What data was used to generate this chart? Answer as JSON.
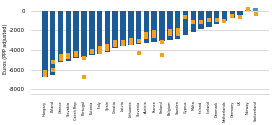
{
  "countries": [
    "Hungary",
    "Poland",
    "Greece",
    "Slovakia",
    "Czech Rep.",
    "Portugal",
    "Estonia",
    "Italy",
    "Spain",
    "Croatia",
    "Latvia",
    "Lithuania",
    "Slovenia",
    "Austria",
    "France",
    "Finland",
    "Belgium",
    "Sweden",
    "Cyprus",
    "Malta",
    "Ireland",
    "Iceland",
    "Denmark",
    "Netherlands",
    "Germany",
    "UK",
    "Norway",
    "Switzerland"
  ],
  "native_bars": [
    -6700,
    -6500,
    -5200,
    -5100,
    -4800,
    -4700,
    -4500,
    -4400,
    -4200,
    -3800,
    -3600,
    -3500,
    -3400,
    -3300,
    -3200,
    -3100,
    -3000,
    -2900,
    -2500,
    -2200,
    -1900,
    -1700,
    -1400,
    -1100,
    -700,
    -400,
    100,
    300
  ],
  "immigrant_dots": [
    -6200,
    -5200,
    -4900,
    -4500,
    -4300,
    -6700,
    -4200,
    -3800,
    -3600,
    -3200,
    -3400,
    -3300,
    -4300,
    -2700,
    -2600,
    -4500,
    -2400,
    -2400,
    -600,
    -1200,
    -1200,
    -900,
    -900,
    -1000,
    -500,
    -600,
    200,
    -350
  ],
  "immigrant_dots2": [
    -6500,
    null,
    null,
    null,
    null,
    null,
    null,
    null,
    null,
    null,
    null,
    null,
    null,
    null,
    null,
    null,
    null,
    null,
    null,
    null,
    null,
    null,
    null,
    null,
    null,
    null,
    null,
    null
  ],
  "bar_color": "#1c5b99",
  "bar_color_light": "#4d90cc",
  "dot_color": "#f5a020",
  "ylabel": "Euros (PPP adjusted)",
  "background_color": "#ffffff",
  "grid_color": "#c0c0c0",
  "ylim": [
    -8500,
    800
  ],
  "yticks": [
    0,
    -2000,
    -4000,
    -6000,
    -8000
  ]
}
